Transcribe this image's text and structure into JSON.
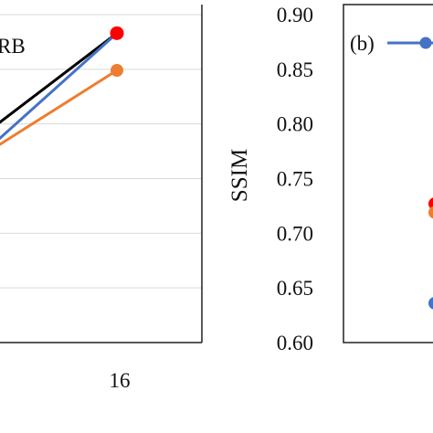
{
  "chart_data": [
    {
      "panel": "left",
      "type": "line",
      "xlabel": "",
      "x_tick_labels": [
        "16"
      ],
      "legend_partial": "RB",
      "grid": true,
      "ylim": [
        0.6,
        0.9
      ],
      "series": [
        {
          "color": "#000000",
          "values": [
            0.794,
            0.883
          ]
        },
        {
          "color": "#4472c4",
          "values": [
            0.778,
            0.883
          ]
        },
        {
          "color": "#ed7d31",
          "values": [
            0.775,
            0.849
          ]
        },
        {
          "color": "#ff0000",
          "values": [
            null,
            0.883
          ]
        }
      ]
    },
    {
      "panel": "right",
      "type": "scatter",
      "ylabel": "SSIM",
      "ylim": [
        0.6,
        0.9
      ],
      "y_ticks": [
        "0.60",
        "0.65",
        "0.70",
        "0.75",
        "0.80",
        "0.85",
        "0.90"
      ],
      "legend_label": "(b)",
      "grid": false,
      "points": [
        {
          "color": "#ff0000",
          "y": 0.727
        },
        {
          "color": "#ed7d31",
          "y": 0.719
        },
        {
          "color": "#4472c4",
          "y": 0.636
        }
      ]
    }
  ],
  "colors": {
    "black": "#000000",
    "blue": "#4472c4",
    "orange": "#ed7d31",
    "red": "#ff0000",
    "grid": "#d9d9d9",
    "frame": "#222222"
  }
}
